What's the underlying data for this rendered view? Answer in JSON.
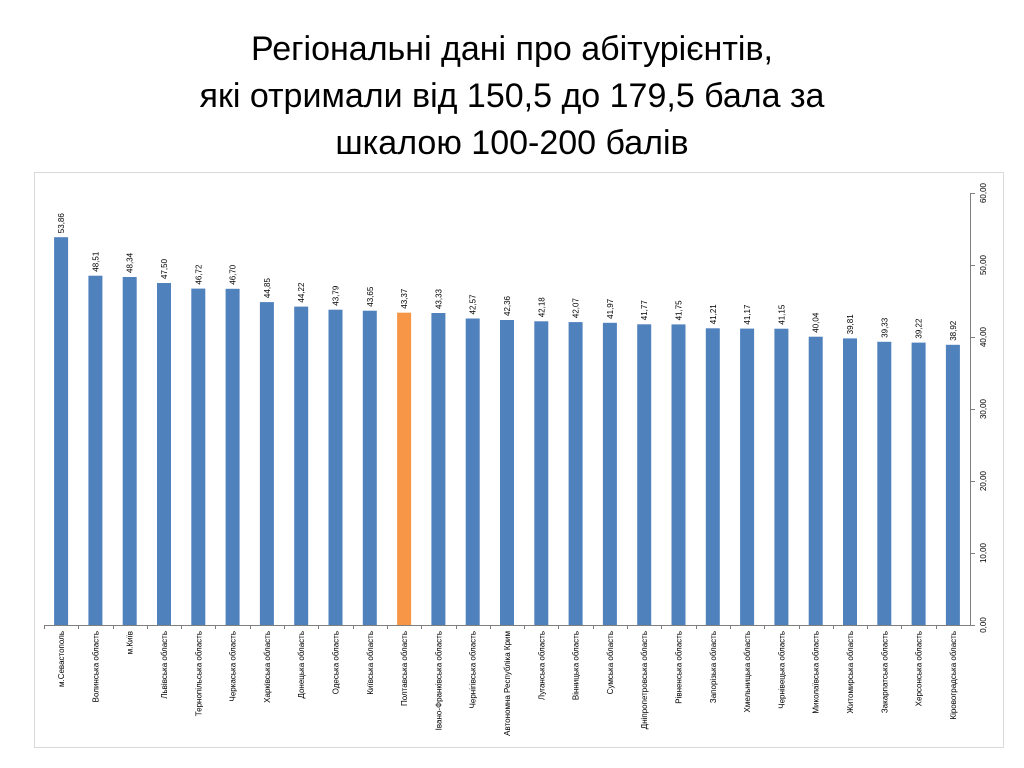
{
  "slide": {
    "title_lines": [
      "Регіональні дані про абітурієнтів,",
      "які отримали від 150,5 до 179,5 бала за",
      "шкалою 100-200 балів"
    ]
  },
  "colors": {
    "bar": "#4f81bd",
    "highlight": "#f79646",
    "axis": "#7f7f7f",
    "gridline": "#d9d9d9",
    "text": "#000000"
  },
  "chart_data": {
    "type": "bar",
    "orientation": "vertical",
    "title": "",
    "xlabel": "",
    "ylabel": "",
    "ylim": [
      0,
      60
    ],
    "y_ticks": [
      0,
      10,
      20,
      30,
      40,
      50,
      60
    ],
    "y_tick_labels": [
      "0,00",
      "10,00",
      "20,00",
      "30,00",
      "40,00",
      "50,00",
      "60,00"
    ],
    "y_axis_position": "right",
    "grid": false,
    "legend": "none",
    "highlighted_category": "Полтавська область",
    "categories": [
      "м.Севастополь",
      "Волинська область",
      "м.Київ",
      "Львівська область",
      "Тернопільська область",
      "Черкаська область",
      "Харківська область",
      "Донецька область",
      "Одеська область",
      "Київська область",
      "Полтавська область",
      "Івано-Франківська область",
      "Чернігівська область",
      "Автономна Республіка Крим",
      "Луганська область",
      "Вінницька область",
      "Сумська область",
      "Дніпропетровська область",
      "Рівненська область",
      "Запорізька область",
      "Хмельницька область",
      "Чернівецька область",
      "Миколаївська область",
      "Житомирська область",
      "Закарпатська область",
      "Херсонська область",
      "Кіровоградська область"
    ],
    "values": [
      53.86,
      48.51,
      48.34,
      47.5,
      46.72,
      46.7,
      44.85,
      44.22,
      43.79,
      43.65,
      43.37,
      43.33,
      42.57,
      42.36,
      42.18,
      42.07,
      41.97,
      41.77,
      41.75,
      41.21,
      41.17,
      41.15,
      40.04,
      39.81,
      39.33,
      39.22,
      38.92
    ],
    "value_labels": [
      "53,86",
      "48,51",
      "48,34",
      "47,50",
      "46,72",
      "46,70",
      "44,85",
      "44,22",
      "43,79",
      "43,65",
      "43,37",
      "43,33",
      "42,57",
      "42,36",
      "42,18",
      "42,07",
      "41,97",
      "41,77",
      "41,75",
      "41,21",
      "41,17",
      "41,15",
      "40,04",
      "39,81",
      "39,33",
      "39,22",
      "38,92"
    ]
  }
}
